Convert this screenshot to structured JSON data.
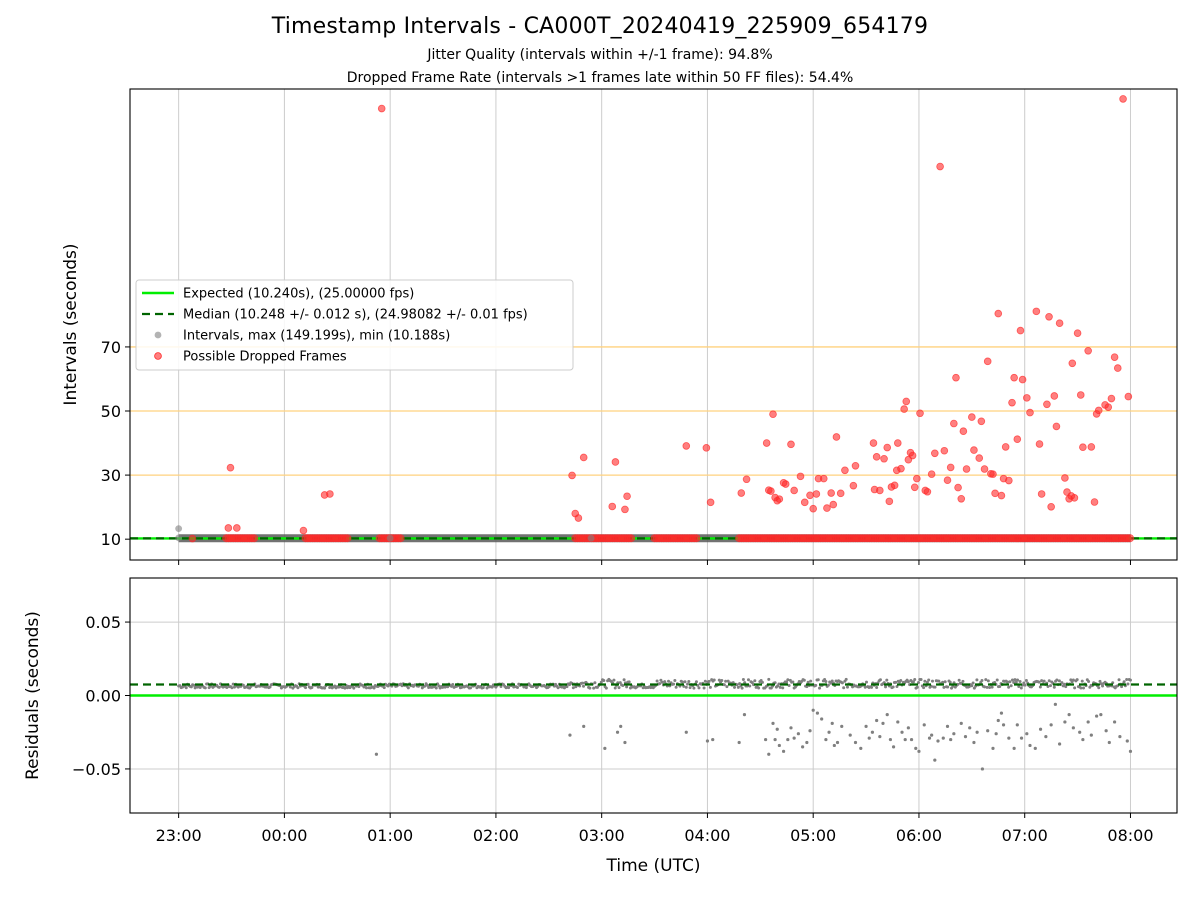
{
  "header": {
    "title": "Timestamp Intervals - CA000T_20240419_225909_654179",
    "subtitle_1": "Jitter Quality (intervals within +/-1 frame): 94.8%",
    "subtitle_2": "Dropped Frame Rate (intervals >1 frames late within 50 FF files): 54.4%"
  },
  "colors": {
    "expected": "#00ee00",
    "median": "#006400",
    "intervals": "#808080",
    "dropped": "#ff2a2a",
    "threshold": "#ffd27f",
    "grid": "#cccccc"
  },
  "chart_data": [
    {
      "type": "scatter",
      "xlabel": "",
      "ylabel": "Intervals (seconds)",
      "x_ticks": [
        "23:00",
        "00:00",
        "01:00",
        "02:00",
        "03:00",
        "04:00",
        "05:00",
        "06:00",
        "07:00",
        "08:00"
      ],
      "y_ticks": [
        10,
        30,
        50,
        70
      ],
      "ylim": [
        3.5,
        150.5
      ],
      "xlim_hours": [
        -0.46,
        9.44
      ],
      "grid": "vertical",
      "horizontal_reference_lines": [
        30,
        50,
        70
      ],
      "legend": {
        "placement": "center-left",
        "entries": [
          "Expected (10.240s), (25.00000 fps)",
          "Median (10.248 +/- 0.012 s), (24.98082 +/- 0.01 fps)",
          "Intervals, max (149.199s), min (10.188s)",
          "Possible Dropped Frames"
        ]
      },
      "lines": {
        "expected": 10.24,
        "median": 10.248
      },
      "baseline_segments_hours": [
        [
          0.0,
          9.0
        ]
      ],
      "series": [
        {
          "name": "Intervals, max (149.199s), min (10.188s)",
          "points": [
            [
              0.0,
              13.3
            ],
            [
              0.0,
              10.4
            ],
            [
              2.0,
              10.3
            ],
            [
              3.9,
              10.3
            ]
          ]
        },
        {
          "name": "Possible Dropped Frames",
          "dense_runs_hours": [
            [
              0.45,
              0.72
            ],
            [
              1.2,
              1.6
            ],
            [
              1.9,
              2.1
            ],
            [
              3.75,
              4.3
            ],
            [
              4.5,
              4.9
            ],
            [
              5.3,
              9.0
            ]
          ],
          "points": [
            [
              0.13,
              10.2
            ],
            [
              0.49,
              32.3
            ],
            [
              0.47,
              13.5
            ],
            [
              0.55,
              13.5
            ],
            [
              1.18,
              12.7
            ],
            [
              1.38,
              23.8
            ],
            [
              1.43,
              24.1
            ],
            [
              1.92,
              144.4
            ],
            [
              3.72,
              29.9
            ],
            [
              3.75,
              18.0
            ],
            [
              3.78,
              16.6
            ],
            [
              3.83,
              35.5
            ],
            [
              4.1,
              20.2
            ],
            [
              4.13,
              34.1
            ],
            [
              4.22,
              19.3
            ],
            [
              4.24,
              23.4
            ],
            [
              4.8,
              39.1
            ],
            [
              4.99,
              38.5
            ],
            [
              5.03,
              21.5
            ],
            [
              5.32,
              24.4
            ],
            [
              5.37,
              28.7
            ],
            [
              5.56,
              40.0
            ],
            [
              5.58,
              25.3
            ],
            [
              5.6,
              25.0
            ],
            [
              5.62,
              49.0
            ],
            [
              5.64,
              23.0
            ],
            [
              5.66,
              22.0
            ],
            [
              5.68,
              22.5
            ],
            [
              5.72,
              27.6
            ],
            [
              5.74,
              27.2
            ],
            [
              5.79,
              39.6
            ],
            [
              5.82,
              25.2
            ],
            [
              5.88,
              29.6
            ],
            [
              5.92,
              21.5
            ],
            [
              5.97,
              23.7
            ],
            [
              6.0,
              19.5
            ],
            [
              6.03,
              24.1
            ],
            [
              6.05,
              28.9
            ],
            [
              6.1,
              28.9
            ],
            [
              6.13,
              19.7
            ],
            [
              6.17,
              24.4
            ],
            [
              6.19,
              20.8
            ],
            [
              6.22,
              41.9
            ],
            [
              6.26,
              24.3
            ],
            [
              6.3,
              31.5
            ],
            [
              6.38,
              26.7
            ],
            [
              6.4,
              32.9
            ],
            [
              6.57,
              40.0
            ],
            [
              6.58,
              25.5
            ],
            [
              6.6,
              35.7
            ],
            [
              6.63,
              25.2
            ],
            [
              6.67,
              35.1
            ],
            [
              6.7,
              38.6
            ],
            [
              6.72,
              21.8
            ],
            [
              6.74,
              26.3
            ],
            [
              6.77,
              26.8
            ],
            [
              6.79,
              31.5
            ],
            [
              6.8,
              40.0
            ],
            [
              6.83,
              32.0
            ],
            [
              6.86,
              50.6
            ],
            [
              6.88,
              53.0
            ],
            [
              6.9,
              34.8
            ],
            [
              6.92,
              37.0
            ],
            [
              6.94,
              36.1
            ],
            [
              6.96,
              26.2
            ],
            [
              6.98,
              28.9
            ],
            [
              7.01,
              49.3
            ],
            [
              7.06,
              25.2
            ],
            [
              7.08,
              24.8
            ],
            [
              7.12,
              30.3
            ],
            [
              7.15,
              36.8
            ],
            [
              7.2,
              126.3
            ],
            [
              7.24,
              37.6
            ],
            [
              7.27,
              28.4
            ],
            [
              7.3,
              32.4
            ],
            [
              7.33,
              46.1
            ],
            [
              7.35,
              60.4
            ],
            [
              7.37,
              26.1
            ],
            [
              7.4,
              22.6
            ],
            [
              7.42,
              43.7
            ],
            [
              7.45,
              31.9
            ],
            [
              7.5,
              48.1
            ],
            [
              7.52,
              37.8
            ],
            [
              7.57,
              35.3
            ],
            [
              7.59,
              46.8
            ],
            [
              7.62,
              31.9
            ],
            [
              7.65,
              65.5
            ],
            [
              7.68,
              30.4
            ],
            [
              7.7,
              30.3
            ],
            [
              7.72,
              24.3
            ],
            [
              7.75,
              80.4
            ],
            [
              7.78,
              23.6
            ],
            [
              7.8,
              28.9
            ],
            [
              7.82,
              38.8
            ],
            [
              7.85,
              28.3
            ],
            [
              7.88,
              52.6
            ],
            [
              7.9,
              60.4
            ],
            [
              7.93,
              41.2
            ],
            [
              7.96,
              75.1
            ],
            [
              7.98,
              59.8
            ],
            [
              8.02,
              54.1
            ],
            [
              8.05,
              49.5
            ],
            [
              8.11,
              81.1
            ],
            [
              8.14,
              39.7
            ],
            [
              8.16,
              24.1
            ],
            [
              8.21,
              52.1
            ],
            [
              8.23,
              79.4
            ],
            [
              8.25,
              20.1
            ],
            [
              8.28,
              54.7
            ],
            [
              8.3,
              45.2
            ],
            [
              8.33,
              77.4
            ],
            [
              8.38,
              29.1
            ],
            [
              8.4,
              24.7
            ],
            [
              8.42,
              22.6
            ],
            [
              8.44,
              23.5
            ],
            [
              8.45,
              64.9
            ],
            [
              8.47,
              22.9
            ],
            [
              8.5,
              74.3
            ],
            [
              8.53,
              55.0
            ],
            [
              8.55,
              38.7
            ],
            [
              8.6,
              68.8
            ],
            [
              8.63,
              38.8
            ],
            [
              8.66,
              21.6
            ],
            [
              8.68,
              49.1
            ],
            [
              8.7,
              50.2
            ],
            [
              8.76,
              51.9
            ],
            [
              8.79,
              51.2
            ],
            [
              8.82,
              53.9
            ],
            [
              8.85,
              66.8
            ],
            [
              8.88,
              63.4
            ],
            [
              8.93,
              147.4
            ],
            [
              8.98,
              54.5
            ]
          ]
        }
      ]
    },
    {
      "type": "scatter",
      "xlabel": "Time (UTC)",
      "ylabel": "Residuals (seconds)",
      "x_ticks": [
        "23:00",
        "00:00",
        "01:00",
        "02:00",
        "03:00",
        "04:00",
        "05:00",
        "06:00",
        "07:00",
        "08:00"
      ],
      "y_ticks": [
        "0.05",
        "0.00",
        "−0.05"
      ],
      "ylim": [
        -0.08,
        0.08
      ],
      "grid": "both",
      "lines": {
        "expected": 0.0,
        "median": 0.0075
      },
      "baseline_band": [
        0.005,
        0.011
      ],
      "series": [
        {
          "name": "Residuals",
          "points": [
            [
              1.87,
              -0.04
            ],
            [
              3.7,
              -0.027
            ],
            [
              3.83,
              -0.021
            ],
            [
              4.03,
              -0.036
            ],
            [
              4.15,
              -0.025
            ],
            [
              4.18,
              -0.021
            ],
            [
              4.22,
              -0.032
            ],
            [
              4.8,
              -0.025
            ],
            [
              5.0,
              -0.031
            ],
            [
              5.05,
              -0.03
            ],
            [
              5.3,
              -0.032
            ],
            [
              5.35,
              -0.013
            ],
            [
              5.55,
              -0.03
            ],
            [
              5.58,
              -0.04
            ],
            [
              5.62,
              -0.019
            ],
            [
              5.64,
              -0.03
            ],
            [
              5.66,
              -0.023
            ],
            [
              5.68,
              -0.034
            ],
            [
              5.72,
              -0.038
            ],
            [
              5.76,
              -0.03
            ],
            [
              5.79,
              -0.022
            ],
            [
              5.82,
              -0.029
            ],
            [
              5.86,
              -0.026
            ],
            [
              5.9,
              -0.035
            ],
            [
              5.94,
              -0.032
            ],
            [
              5.97,
              -0.024
            ],
            [
              6.0,
              -0.01
            ],
            [
              6.04,
              -0.012
            ],
            [
              6.08,
              -0.016
            ],
            [
              6.12,
              -0.03
            ],
            [
              6.15,
              -0.025
            ],
            [
              6.18,
              -0.019
            ],
            [
              6.2,
              -0.034
            ],
            [
              6.23,
              -0.032
            ],
            [
              6.27,
              -0.021
            ],
            [
              6.35,
              -0.027
            ],
            [
              6.4,
              -0.032
            ],
            [
              6.45,
              -0.036
            ],
            [
              6.5,
              -0.021
            ],
            [
              6.53,
              -0.029
            ],
            [
              6.56,
              -0.025
            ],
            [
              6.6,
              -0.017
            ],
            [
              6.63,
              -0.028
            ],
            [
              6.66,
              -0.019
            ],
            [
              6.7,
              -0.013
            ],
            [
              6.73,
              -0.03
            ],
            [
              6.76,
              -0.035
            ],
            [
              6.8,
              -0.018
            ],
            [
              6.84,
              -0.025
            ],
            [
              6.87,
              -0.03
            ],
            [
              6.9,
              -0.022
            ],
            [
              6.93,
              -0.03
            ],
            [
              6.97,
              -0.036
            ],
            [
              7.0,
              -0.038
            ],
            [
              7.05,
              -0.02
            ],
            [
              7.1,
              -0.029
            ],
            [
              7.12,
              -0.027
            ],
            [
              7.15,
              -0.044
            ],
            [
              7.18,
              -0.031
            ],
            [
              7.23,
              -0.029
            ],
            [
              7.27,
              -0.021
            ],
            [
              7.3,
              -0.03
            ],
            [
              7.33,
              -0.026
            ],
            [
              7.4,
              -0.019
            ],
            [
              7.44,
              -0.028
            ],
            [
              7.48,
              -0.022
            ],
            [
              7.52,
              -0.032
            ],
            [
              7.55,
              -0.025
            ],
            [
              7.6,
              -0.05
            ],
            [
              7.65,
              -0.024
            ],
            [
              7.7,
              -0.036
            ],
            [
              7.73,
              -0.026
            ],
            [
              7.75,
              -0.017
            ],
            [
              7.78,
              -0.012
            ],
            [
              7.8,
              -0.02
            ],
            [
              7.85,
              -0.029
            ],
            [
              7.9,
              -0.036
            ],
            [
              7.93,
              -0.02
            ],
            [
              7.97,
              -0.029
            ],
            [
              8.02,
              -0.026
            ],
            [
              8.05,
              -0.034
            ],
            [
              8.1,
              -0.036
            ],
            [
              8.15,
              -0.023
            ],
            [
              8.2,
              -0.028
            ],
            [
              8.25,
              -0.02
            ],
            [
              8.29,
              -0.006
            ],
            [
              8.33,
              -0.033
            ],
            [
              8.38,
              -0.018
            ],
            [
              8.42,
              -0.013
            ],
            [
              8.46,
              -0.022
            ],
            [
              8.52,
              -0.025
            ],
            [
              8.55,
              -0.03
            ],
            [
              8.6,
              -0.018
            ],
            [
              8.63,
              -0.027
            ],
            [
              8.68,
              -0.014
            ],
            [
              8.72,
              -0.013
            ],
            [
              8.77,
              -0.024
            ],
            [
              8.8,
              -0.032
            ],
            [
              8.85,
              -0.018
            ],
            [
              8.9,
              -0.028
            ],
            [
              8.97,
              -0.031
            ],
            [
              9.0,
              -0.038
            ]
          ]
        }
      ]
    }
  ]
}
